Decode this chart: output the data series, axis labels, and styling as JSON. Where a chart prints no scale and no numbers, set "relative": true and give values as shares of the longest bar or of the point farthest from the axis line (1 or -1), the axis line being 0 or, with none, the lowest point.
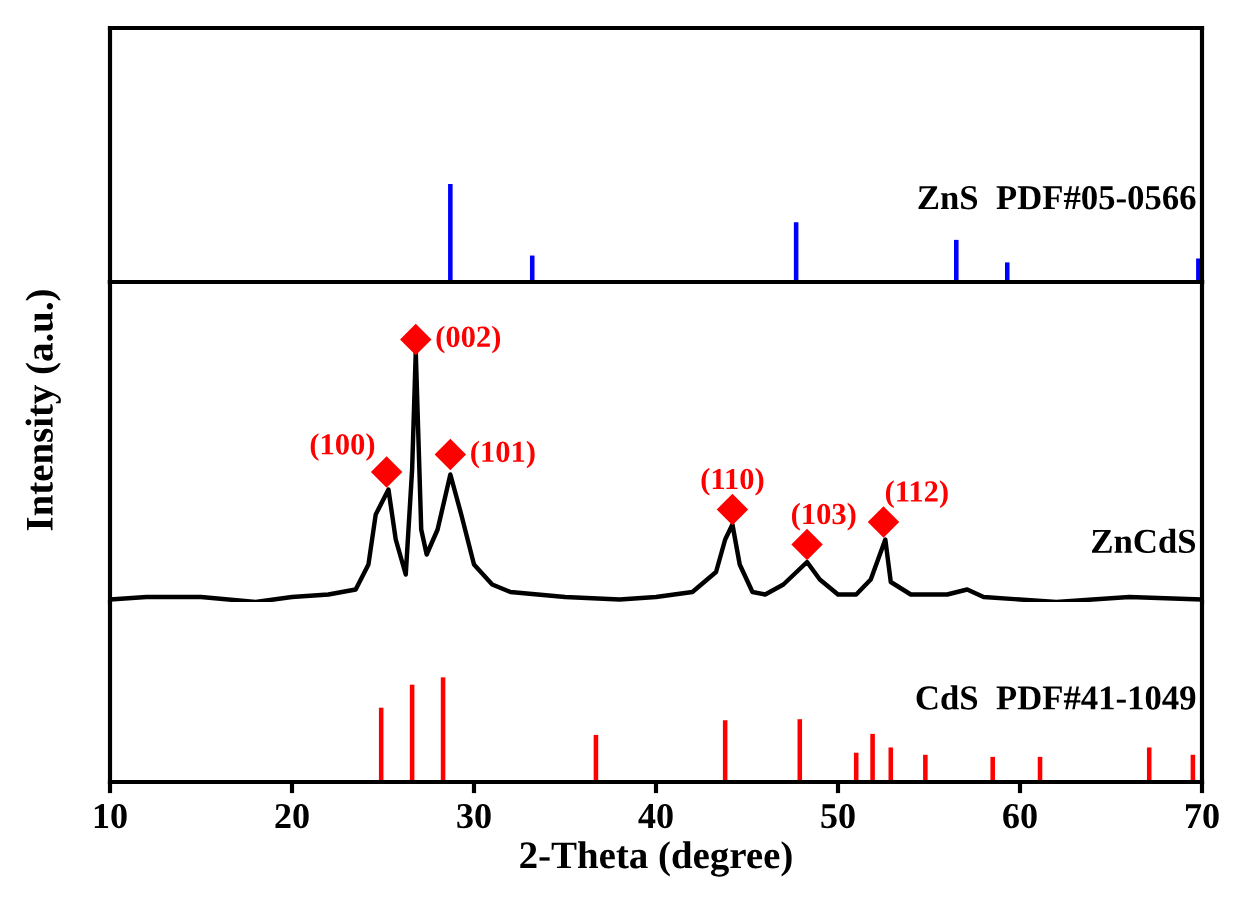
{
  "chart_data": [
    {
      "type": "bar",
      "relative": true,
      "x": [
        28.7,
        33.2,
        47.7,
        56.5,
        59.3,
        69.8
      ],
      "values": [
        1,
        0.27,
        0.61,
        0.43,
        0.2,
        0.24
      ],
      "color": "#0000ff",
      "xlim": [
        10,
        70
      ],
      "tick_labels": false,
      "annotations": [
        "ZnS  PDF#05-0566"
      ]
    },
    {
      "type": "line",
      "relative": true,
      "xlim": [
        10,
        70
      ],
      "tick_labels": false,
      "ylabel": "Intensity (a.u.)",
      "annotations": [
        "ZnCdS",
        {
          "text": "(100)",
          "x": 25.2,
          "y": 0.52
        },
        {
          "text": "(002)",
          "x": 26.8,
          "y": 1.05
        },
        {
          "text": "(101)",
          "x": 28.7,
          "y": 0.59
        },
        {
          "text": "(110)",
          "x": 44.2,
          "y": 0.37
        },
        {
          "text": "(103)",
          "x": 48.3,
          "y": 0.23
        },
        {
          "text": "(112)",
          "x": 52.5,
          "y": 0.32
        }
      ],
      "color": "#000000",
      "x": [
        10,
        12,
        15,
        18,
        20,
        22,
        23.5,
        24.2,
        24.6,
        25.3,
        25.7,
        26.25,
        26.6,
        26.8,
        27.1,
        27.4,
        28.0,
        28.7,
        29.3,
        30,
        31,
        32,
        35,
        38,
        40,
        42,
        43.3,
        43.8,
        44.2,
        44.6,
        45.3,
        46,
        47,
        48.3,
        49,
        50,
        51,
        51.8,
        52.6,
        52.9,
        54,
        56,
        57.1,
        58,
        62,
        66,
        70
      ],
      "values": [
        0.01,
        0.02,
        0.02,
        0,
        0.02,
        0.03,
        0.05,
        0.15,
        0.35,
        0.45,
        0.25,
        0.11,
        0.53,
        1.0,
        0.29,
        0.19,
        0.29,
        0.51,
        0.35,
        0.15,
        0.07,
        0.04,
        0.02,
        0.01,
        0.02,
        0.04,
        0.12,
        0.25,
        0.31,
        0.15,
        0.04,
        0.03,
        0.07,
        0.16,
        0.09,
        0.03,
        0.03,
        0.09,
        0.25,
        0.08,
        0.03,
        0.03,
        0.05,
        0.02,
        0,
        0.02,
        0.01
      ]
    },
    {
      "type": "bar",
      "relative": true,
      "x": [
        24.9,
        26.6,
        28.3,
        36.7,
        43.8,
        47.9,
        51.0,
        51.9,
        52.9,
        54.8,
        58.5,
        61.1,
        67.1,
        69.5
      ],
      "values": [
        0.71,
        0.93,
        1,
        0.45,
        0.59,
        0.6,
        0.28,
        0.46,
        0.33,
        0.26,
        0.24,
        0.24,
        0.33,
        0.26
      ],
      "color": "#ff0000",
      "xlim": [
        10,
        70
      ],
      "xticks": [
        10,
        20,
        30,
        40,
        50,
        60,
        70
      ],
      "tick_labels": "x",
      "xlabel": "2-Theta (degree)",
      "annotations": [
        "CdS  PDF#41-1049"
      ]
    }
  ]
}
